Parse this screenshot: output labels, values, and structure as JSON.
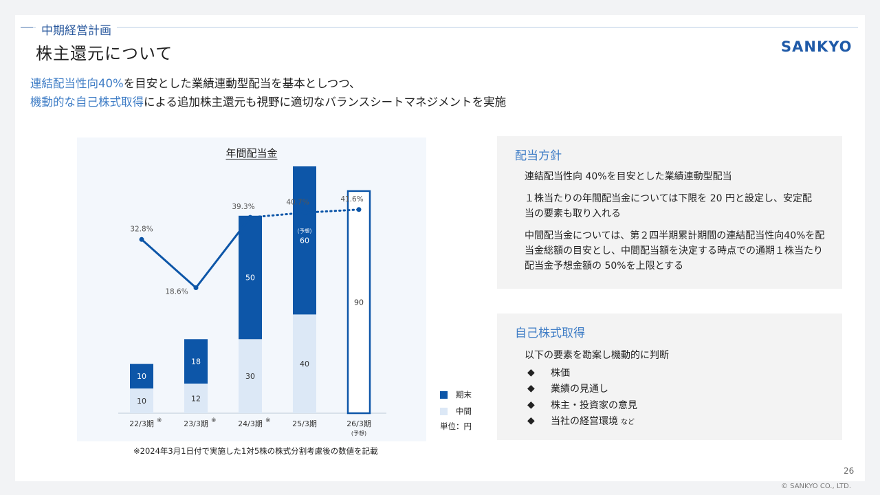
{
  "header": {
    "section": "中期経営計画",
    "title": "株主還元について",
    "logo_text": "SANKYO"
  },
  "intro": {
    "line1_highlight": "連結配当性向40%",
    "line1_rest": "を目安とした業績連動型配当を基本としつつ、",
    "line2_highlight": "機動的な自己株式取得",
    "line2_rest": "による追加株主還元も視野に適切なバランスシートマネジメントを実施"
  },
  "chart_data": {
    "type": "bar",
    "title": "年間配当金",
    "categories": [
      "22/3期",
      "23/3期",
      "24/3期",
      "25/3期",
      "26/3期"
    ],
    "category_marks": [
      "※",
      "※",
      "※",
      "",
      ""
    ],
    "category_sublabels": [
      "",
      "",
      "",
      "",
      "(予想)"
    ],
    "series": [
      {
        "name": "中間",
        "values": [
          10,
          12,
          30,
          40,
          null
        ]
      },
      {
        "name": "期末",
        "values": [
          10,
          18,
          50,
          60,
          null
        ]
      }
    ],
    "forecast_total": {
      "category": "26/3期",
      "value": 90
    },
    "bar_annotations": [
      {
        "category": "25/3期",
        "series": "期末",
        "text": "(予想)"
      }
    ],
    "payout_ratio": {
      "labels": [
        "32.8%",
        "18.6%",
        "39.3%",
        "40.7%",
        "41.6%"
      ],
      "values": [
        32.8,
        18.6,
        39.3,
        40.7,
        41.6
      ],
      "forecast_from_index": 2
    },
    "colors": {
      "期末": "#0d56a8",
      "中間": "#dce8f6",
      "line": "#0d56a8"
    },
    "ylim": [
      0,
      100
    ],
    "grid": false,
    "legend": "bottom-right"
  },
  "legend": {
    "final": "期末",
    "interim": "中間",
    "unit": "単位：円"
  },
  "footnote": "※2024年3月1日付で実施した1対5株の株式分割考慮後の数値を記載",
  "policy": {
    "title": "配当方針",
    "items": [
      "連結配当性向 40%を目安とした業績連動型配当",
      "１株当たりの年間配当金については下限を 20 円と設定し、安定配当の要素も取り入れる",
      "中間配当金については、第２四半期累計期間の連結配当性向40%を配当金総額の目安とし、中間配当額を決定する時点での通期１株当たり配当金予想金額の 50%を上限とする"
    ]
  },
  "buyback": {
    "title": "自己株式取得",
    "lead": "以下の要素を勘案し機動的に判断",
    "bullet_symbol": "◆",
    "items": [
      "株価",
      "業績の見通し",
      "株主・投資家の意見",
      "当社の経営環境"
    ],
    "last_suffix": "など"
  },
  "page_number": "26",
  "copyright": "© SANKYO CO., LTD."
}
